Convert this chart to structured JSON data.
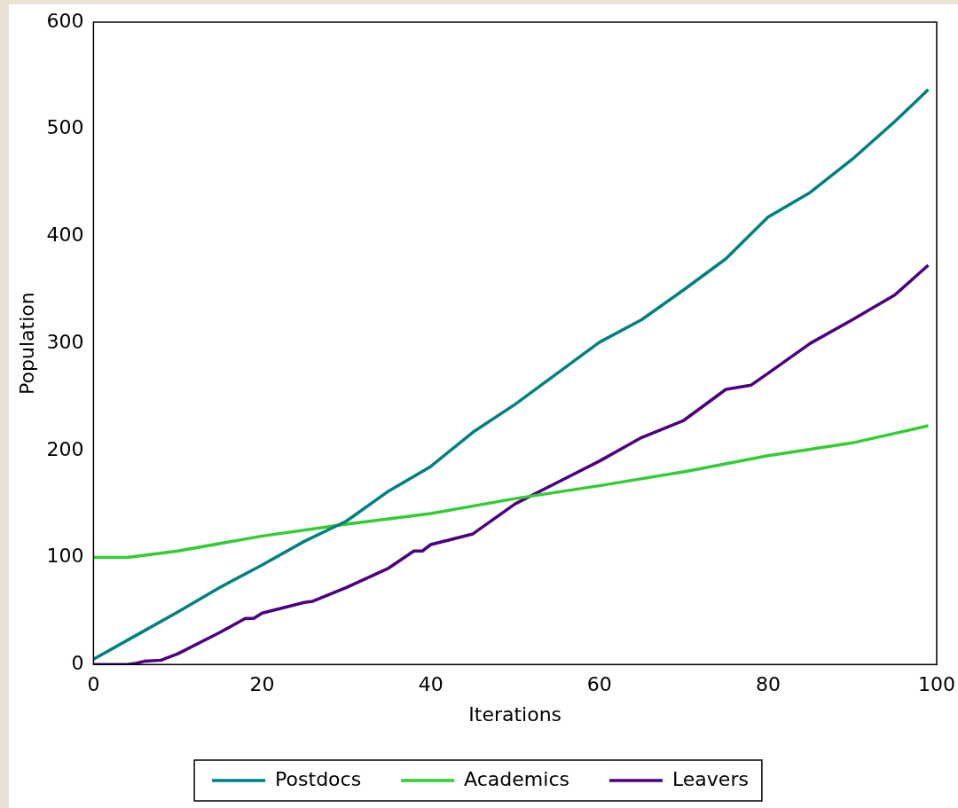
{
  "chart_data": {
    "type": "line",
    "xlabel": "Iterations",
    "ylabel": "Population",
    "xlim": [
      0,
      100
    ],
    "xticks": [
      0,
      20,
      40,
      60,
      80,
      100
    ],
    "ylim": [
      0,
      600
    ],
    "yticks": [
      0,
      100,
      200,
      300,
      400,
      500,
      600
    ],
    "grid": false,
    "legend": "bottom",
    "marker": "none",
    "line_style": "solid",
    "series": [
      {
        "name": "Postdocs",
        "color": "#008080",
        "x": [
          0,
          5,
          10,
          15,
          20,
          25,
          30,
          35,
          40,
          45,
          50,
          55,
          60,
          65,
          70,
          75,
          80,
          85,
          90,
          95,
          99
        ],
        "values": [
          5,
          27,
          49,
          72,
          93,
          115,
          134,
          162,
          185,
          217,
          243,
          272,
          301,
          322,
          350,
          379,
          418,
          441,
          472,
          507,
          537
        ]
      },
      {
        "name": "Academics",
        "color": "#32cd32",
        "x": [
          0,
          4,
          10,
          20,
          30,
          40,
          50,
          60,
          70,
          80,
          90,
          99
        ],
        "values": [
          100,
          100,
          106,
          120,
          131,
          141,
          155,
          167,
          180,
          195,
          207,
          223
        ]
      },
      {
        "name": "Leavers",
        "color": "#4b0082",
        "x": [
          0,
          4,
          5,
          6,
          8,
          10,
          15,
          18,
          19,
          20,
          25,
          26,
          30,
          35,
          38,
          39,
          40,
          45,
          50,
          55,
          60,
          65,
          70,
          75,
          78,
          80,
          85,
          90,
          95,
          99
        ],
        "values": [
          0,
          0,
          1,
          3,
          4,
          10,
          30,
          43,
          43,
          48,
          58,
          59,
          72,
          90,
          106,
          106,
          112,
          122,
          150,
          170,
          190,
          212,
          228,
          257,
          261,
          272,
          300,
          322,
          345,
          373
        ]
      }
    ]
  }
}
